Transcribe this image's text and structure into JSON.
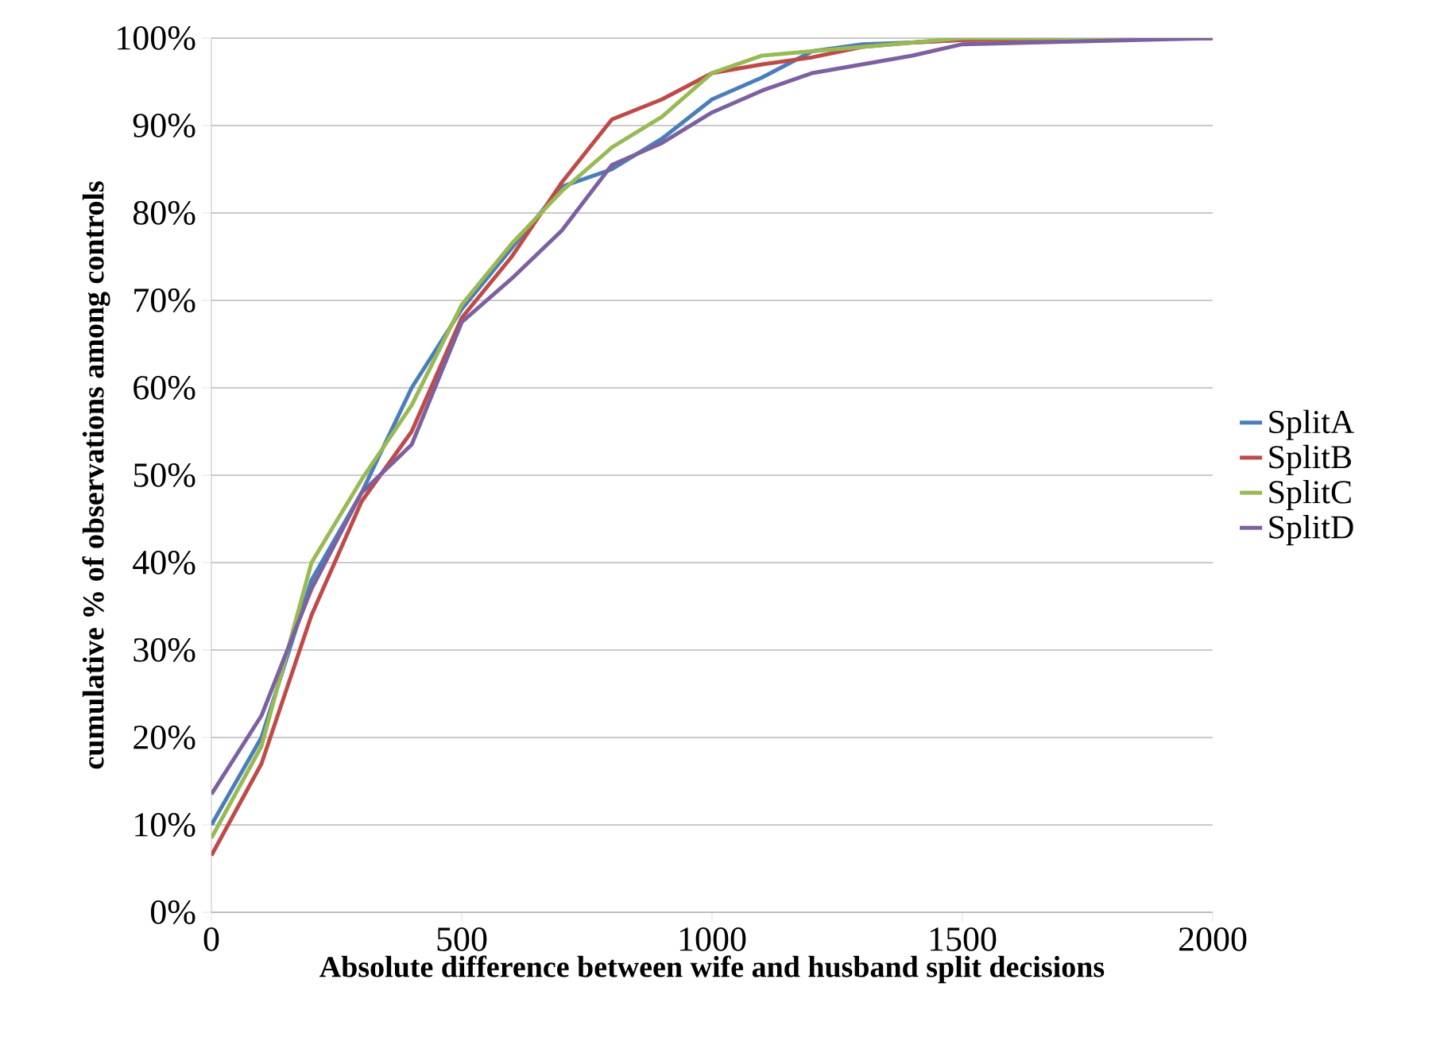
{
  "chart_data": {
    "type": "line",
    "xlabel": "Absolute difference between wife and husband split decisions",
    "ylabel": "cumulative % of observations among controls",
    "x": [
      0,
      100,
      200,
      300,
      400,
      500,
      600,
      700,
      800,
      900,
      1000,
      1100,
      1200,
      1300,
      1400,
      1500,
      2000
    ],
    "series": [
      {
        "name": "SplitA",
        "color": "#4a7ebb",
        "values": [
          10,
          20,
          38,
          48,
          60,
          69,
          76,
          83,
          85,
          88.5,
          93,
          95.5,
          98.5,
          99.3,
          99.5,
          99.8,
          100
        ]
      },
      {
        "name": "SplitB",
        "color": "#be4b48",
        "values": [
          6.5,
          17,
          34,
          47,
          55,
          68,
          75,
          83.5,
          90.7,
          93,
          96,
          97,
          97.8,
          99,
          99.5,
          99.8,
          100
        ]
      },
      {
        "name": "SplitC",
        "color": "#98b954",
        "values": [
          8.5,
          19,
          40,
          49.5,
          58,
          69.5,
          76.5,
          82.5,
          87.5,
          91,
          96,
          98,
          98.5,
          99,
          99.5,
          100,
          100
        ]
      },
      {
        "name": "SplitD",
        "color": "#7d60a0",
        "values": [
          13.5,
          22.5,
          37,
          48,
          53.5,
          67.5,
          72.5,
          78,
          85.5,
          88,
          91.5,
          94,
          96,
          97,
          98,
          99.3,
          100
        ]
      }
    ],
    "xlim": [
      0,
      2000
    ],
    "xticks": [
      0,
      500,
      1000,
      1500,
      2000
    ],
    "ylim": [
      0,
      100
    ],
    "yticks": [
      {
        "value": 0,
        "label": "0%"
      },
      {
        "value": 10,
        "label": "10%"
      },
      {
        "value": 20,
        "label": "20%"
      },
      {
        "value": 30,
        "label": "30%"
      },
      {
        "value": 40,
        "label": "40%"
      },
      {
        "value": 50,
        "label": "50%"
      },
      {
        "value": 60,
        "label": "60%"
      },
      {
        "value": 70,
        "label": "70%"
      },
      {
        "value": 80,
        "label": "80%"
      },
      {
        "value": 90,
        "label": "90%"
      },
      {
        "value": 100,
        "label": "100%"
      }
    ],
    "grid": "y",
    "legend": "right",
    "marker": "none",
    "line_style": "solid"
  }
}
